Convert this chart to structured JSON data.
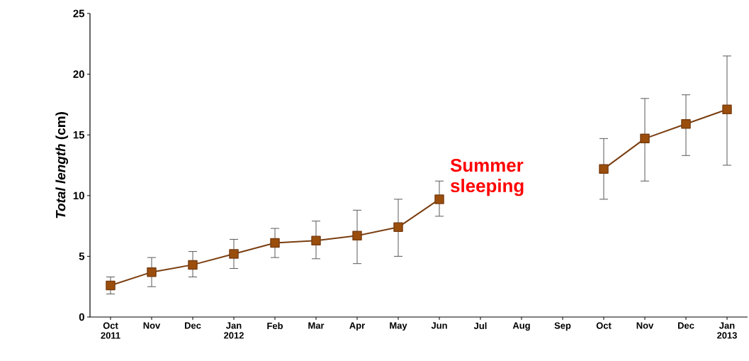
{
  "chart_data": {
    "type": "line",
    "ylabel": "*Total length* (cm)",
    "categories": [
      "Oct 2011",
      "Nov",
      "Dec",
      "Jan 2012",
      "Feb",
      "Mar",
      "Apr",
      "May",
      "Jun",
      "Jul",
      "Aug",
      "Sep",
      "Oct",
      "Nov",
      "Dec",
      "Jan 2013"
    ],
    "series": [
      {
        "color": "#7a3e10",
        "values": [
          2.6,
          3.7,
          4.3,
          5.2,
          6.1,
          6.3,
          6.7,
          7.4,
          9.7,
          null,
          null,
          null,
          12.2,
          14.7,
          15.9,
          17.1
        ],
        "errors": [
          [
            1.9,
            3.3
          ],
          [
            2.5,
            4.9
          ],
          [
            3.3,
            5.4
          ],
          [
            4.0,
            6.4
          ],
          [
            4.9,
            7.3
          ],
          [
            4.8,
            7.9
          ],
          [
            4.4,
            8.8
          ],
          [
            5.0,
            9.7
          ],
          [
            8.3,
            11.2
          ],
          null,
          null,
          null,
          [
            9.7,
            14.7
          ],
          [
            11.2,
            18.0
          ],
          [
            13.3,
            18.3
          ],
          [
            12.5,
            21.5
          ]
        ]
      }
    ],
    "ylim": [
      0,
      25
    ],
    "yticks": [
      0,
      5,
      10,
      15,
      20,
      25
    ],
    "marker": "square",
    "line_style": "solid",
    "grid": false,
    "annotations": [
      "Summer sleeping"
    ]
  }
}
